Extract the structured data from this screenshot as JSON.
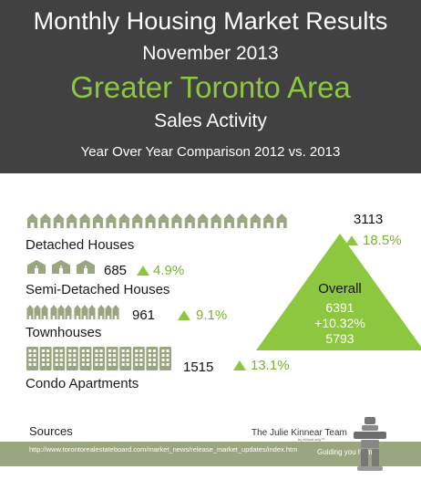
{
  "header": {
    "title": "Monthly Housing Market Results",
    "month": "November 2013",
    "area": "Greater Toronto Area",
    "subtitle": "Sales Activity",
    "comparison": "Year Over Year Comparison 2012 vs. 2013"
  },
  "chart_data": {
    "type": "table",
    "categories": [
      "Detached Houses",
      "Semi-Detached Houses",
      "Townhouses",
      "Condo Apartments"
    ],
    "series": [
      {
        "name": "",
        "values": [
          3113,
          685,
          961,
          1515
        ]
      }
    ],
    "changes": [
      "18.5%",
      "4.9%",
      "9.1%",
      "13.1%"
    ],
    "overall": {
      "label": "Overall",
      "value_2013": "6391",
      "change": "+10.32%",
      "value_2012": "5793"
    }
  },
  "rows": [
    {
      "label": "Detached Houses",
      "value": "3113",
      "change": "18.5%",
      "icons": 20
    },
    {
      "label": "Semi-Detached Houses",
      "value": "685",
      "change": "4.9%",
      "icons": 3
    },
    {
      "label": "Townhouses",
      "value": "961",
      "change": "9.1%",
      "icons": 4
    },
    {
      "label": "Condo Apartments",
      "value": "1515",
      "change": "13.1%",
      "icons": 11
    }
  ],
  "colors": {
    "header_bg": "#414141",
    "accent": "#8dc63f",
    "icon_fill": "#9aa67f",
    "footer_bg": "#9aa67f"
  },
  "footer": {
    "sources_label": "Sources",
    "url": "http://www.torontorealestateboard.com/market_news/release_market_updates/index.htm",
    "brand": "The Julie Kinnear Team",
    "brand_sub": "by ethical only™",
    "tagline": "Guiding you home"
  }
}
